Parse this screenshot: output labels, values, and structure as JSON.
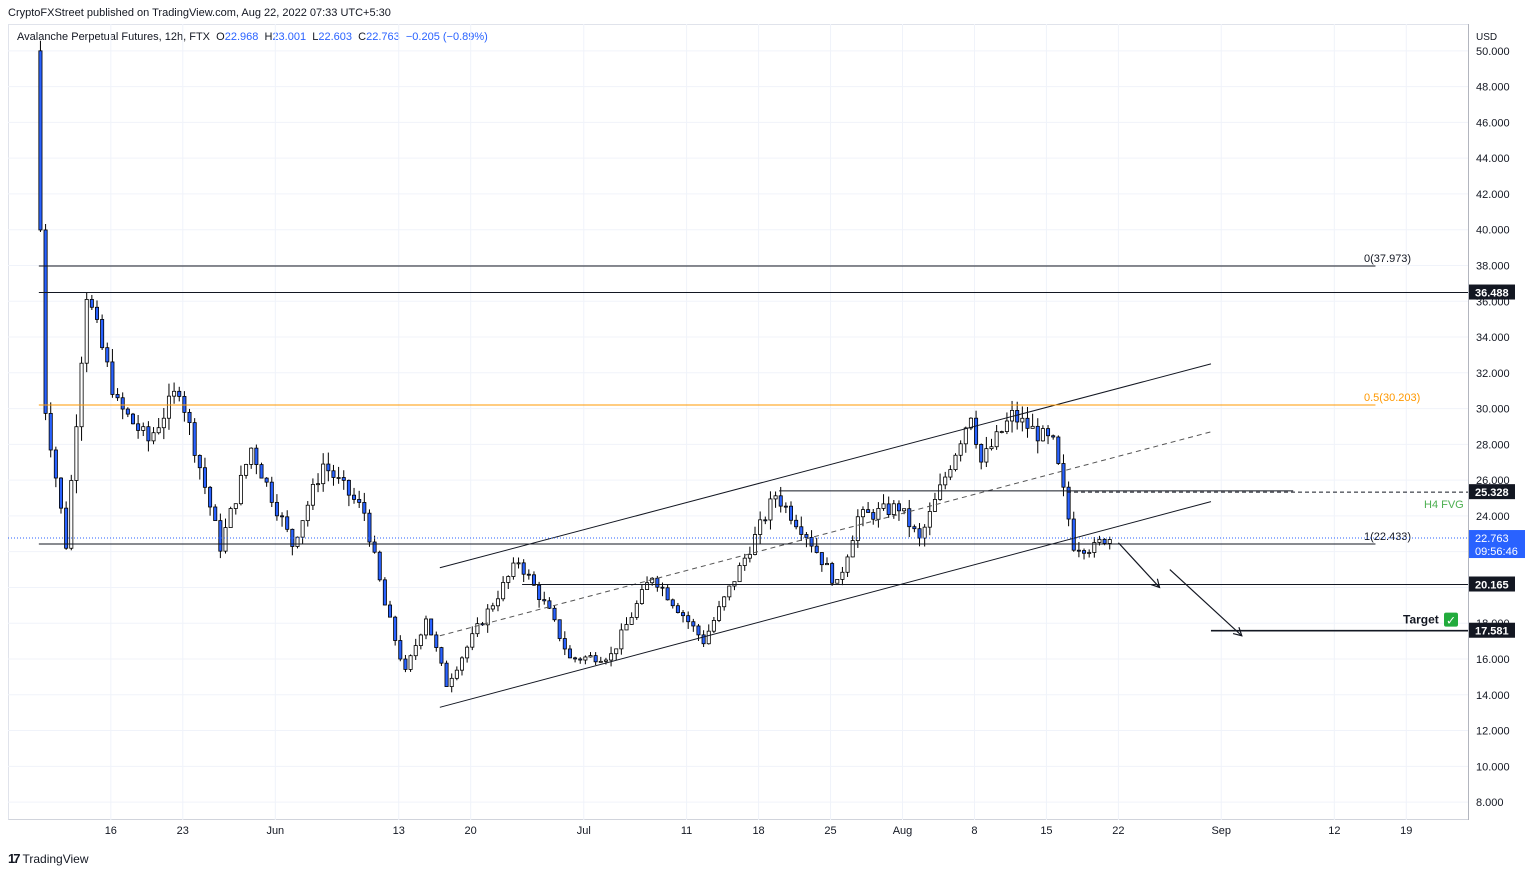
{
  "header": {
    "published": "CryptoFXStreet published on TradingView.com, Aug 22, 2022 07:33 UTC+5:30"
  },
  "legend": {
    "symbol": "Avalanche Perpetual Futures, 12h, FTX",
    "o_label": "O",
    "o_value": "22.968",
    "h_label": "H",
    "h_value": "23.001",
    "l_label": "L",
    "l_value": "22.603",
    "c_label": "C",
    "c_value": "22.763",
    "change": "−0.205 (−0.89%)"
  },
  "footer": {
    "brand": "TradingView"
  },
  "colors": {
    "up_fill": "#ffffff",
    "down_fill": "#2962ff",
    "candle_line": "#000000",
    "fib_half": "#ff9800",
    "fvg_label": "#4caf50",
    "price_tag": "#131722",
    "last_price": "#2962ff"
  },
  "chart_data": {
    "type": "candlestick",
    "currency": "USD",
    "ylim": [
      7.0,
      51.5
    ],
    "yticks": [
      8,
      10,
      12,
      14,
      16,
      18,
      20,
      22,
      24,
      26,
      28,
      30,
      32,
      34,
      36,
      38,
      40,
      42,
      44,
      46,
      48,
      50
    ],
    "ytick_labels": [
      "8.000",
      "10.000",
      "12.000",
      "14.000",
      "16.000",
      "18.000",
      "20.000",
      "22.000",
      "24.000",
      "26.000",
      "28.000",
      "30.000",
      "32.000",
      "34.000",
      "36.000",
      "38.000",
      "40.000",
      "42.000",
      "44.000",
      "46.000",
      "48.000",
      "50.000"
    ],
    "x_start": "2022-05-06",
    "x_end": "2022-09-25",
    "xticks": [
      {
        "date": "2022-05-16",
        "label": "16"
      },
      {
        "date": "2022-05-23",
        "label": "23"
      },
      {
        "date": "2022-06-01",
        "label": "Jun"
      },
      {
        "date": "2022-06-13",
        "label": "13"
      },
      {
        "date": "2022-06-20",
        "label": "20"
      },
      {
        "date": "2022-07-01",
        "label": "Jul"
      },
      {
        "date": "2022-07-11",
        "label": "11"
      },
      {
        "date": "2022-07-18",
        "label": "18"
      },
      {
        "date": "2022-07-25",
        "label": "25"
      },
      {
        "date": "2022-08-01",
        "label": "Aug"
      },
      {
        "date": "2022-08-08",
        "label": "8"
      },
      {
        "date": "2022-08-15",
        "label": "15"
      },
      {
        "date": "2022-08-22",
        "label": "22"
      },
      {
        "date": "2022-09-01",
        "label": "Sep"
      },
      {
        "date": "2022-09-12",
        "label": "12"
      },
      {
        "date": "2022-09-19",
        "label": "19"
      }
    ],
    "key_points": [
      {
        "date": "2022-05-09",
        "price": 50.0
      },
      {
        "date": "2022-05-10",
        "price": 30.0
      },
      {
        "date": "2022-05-12",
        "price": 22.4
      },
      {
        "date": "2022-05-14",
        "price": 36.5
      },
      {
        "date": "2022-05-17",
        "price": 30.2
      },
      {
        "date": "2022-05-20",
        "price": 28.2
      },
      {
        "date": "2022-05-23",
        "price": 31.2
      },
      {
        "date": "2022-05-27",
        "price": 22.3
      },
      {
        "date": "2022-05-30",
        "price": 27.8
      },
      {
        "date": "2022-06-03",
        "price": 22.4
      },
      {
        "date": "2022-06-06",
        "price": 26.9
      },
      {
        "date": "2022-06-10",
        "price": 24.2
      },
      {
        "date": "2022-06-12",
        "price": 19.0
      },
      {
        "date": "2022-06-14",
        "price": 15.2
      },
      {
        "date": "2022-06-16",
        "price": 18.4
      },
      {
        "date": "2022-06-18",
        "price": 14.6
      },
      {
        "date": "2022-06-21",
        "price": 17.7
      },
      {
        "date": "2022-06-25",
        "price": 21.5
      },
      {
        "date": "2022-06-28",
        "price": 18.6
      },
      {
        "date": "2022-06-30",
        "price": 16.0
      },
      {
        "date": "2022-07-04",
        "price": 16.2
      },
      {
        "date": "2022-07-08",
        "price": 20.7
      },
      {
        "date": "2022-07-13",
        "price": 17.0
      },
      {
        "date": "2022-07-18",
        "price": 22.8
      },
      {
        "date": "2022-07-20",
        "price": 25.2
      },
      {
        "date": "2022-07-23",
        "price": 23.0
      },
      {
        "date": "2022-07-26",
        "price": 20.1
      },
      {
        "date": "2022-07-28",
        "price": 23.9
      },
      {
        "date": "2022-08-01",
        "price": 24.5
      },
      {
        "date": "2022-08-03",
        "price": 22.6
      },
      {
        "date": "2022-08-08",
        "price": 29.8
      },
      {
        "date": "2022-08-09",
        "price": 27.0
      },
      {
        "date": "2022-08-12",
        "price": 29.6
      },
      {
        "date": "2022-08-16",
        "price": 28.0
      },
      {
        "date": "2022-08-17",
        "price": 25.3
      },
      {
        "date": "2022-08-18",
        "price": 22.4
      },
      {
        "date": "2022-08-20",
        "price": 22.2
      },
      {
        "date": "2022-08-21",
        "price": 22.763
      }
    ],
    "levels": [
      {
        "name": "fib-0",
        "price": 37.973,
        "from": "2022-05-09",
        "to": "2022-09-16",
        "label": "0(37.973)",
        "tag": "",
        "color": "#131722",
        "dashed": false
      },
      {
        "name": "resistance-36",
        "price": 36.488,
        "from": "2022-05-09",
        "to": "2022-09-25",
        "label": "",
        "tag": "36.488",
        "color": "#131722",
        "dashed": false
      },
      {
        "name": "fib-half",
        "price": 30.203,
        "from": "2022-05-09",
        "to": "2022-09-16",
        "label": "0.5(30.203)",
        "tag": "",
        "color": "#ff9800",
        "dashed": false
      },
      {
        "name": "fvg-top",
        "price": 25.328,
        "from": "2022-08-17",
        "to": "2022-09-25",
        "label": "",
        "tag": "25.328",
        "color": "#131722",
        "dashed": true
      },
      {
        "name": "range-top",
        "price": 25.4,
        "from": "2022-07-20",
        "to": "2022-09-08",
        "label": "",
        "tag": "",
        "color": "#131722",
        "dashed": false
      },
      {
        "name": "fib-1",
        "price": 22.433,
        "from": "2022-05-09",
        "to": "2022-09-16",
        "label": "1(22.433)",
        "tag": "",
        "color": "#131722",
        "dashed": false
      },
      {
        "name": "support-20",
        "price": 20.165,
        "from": "2022-06-25",
        "to": "2022-09-25",
        "label": "",
        "tag": "20.165",
        "color": "#131722",
        "dashed": false
      },
      {
        "name": "target",
        "price": 17.581,
        "from": "2022-08-31",
        "to": "2022-09-25",
        "label": "",
        "tag": "17.581",
        "color": "#131722",
        "dashed": false
      }
    ],
    "channel": {
      "upper": [
        {
          "date": "2022-06-17",
          "price": 21.1
        },
        {
          "date": "2022-08-31",
          "price": 32.5
        }
      ],
      "middle": [
        {
          "date": "2022-06-17",
          "price": 17.3
        },
        {
          "date": "2022-08-31",
          "price": 28.7
        }
      ],
      "lower": [
        {
          "date": "2022-06-17",
          "price": 13.3
        },
        {
          "date": "2022-08-31",
          "price": 24.8
        }
      ]
    },
    "arrows": [
      [
        {
          "date": "2022-08-22",
          "price": 22.5
        },
        {
          "date": "2022-08-26",
          "price": 20.0
        }
      ],
      [
        {
          "date": "2022-08-27",
          "price": 21.0
        },
        {
          "date": "2022-09-03",
          "price": 17.3
        }
      ]
    ],
    "fvg_label": "H4 FVG",
    "target_label": "Target",
    "target_check": "✓",
    "last_price": "22.763",
    "countdown": "09:56:46"
  }
}
